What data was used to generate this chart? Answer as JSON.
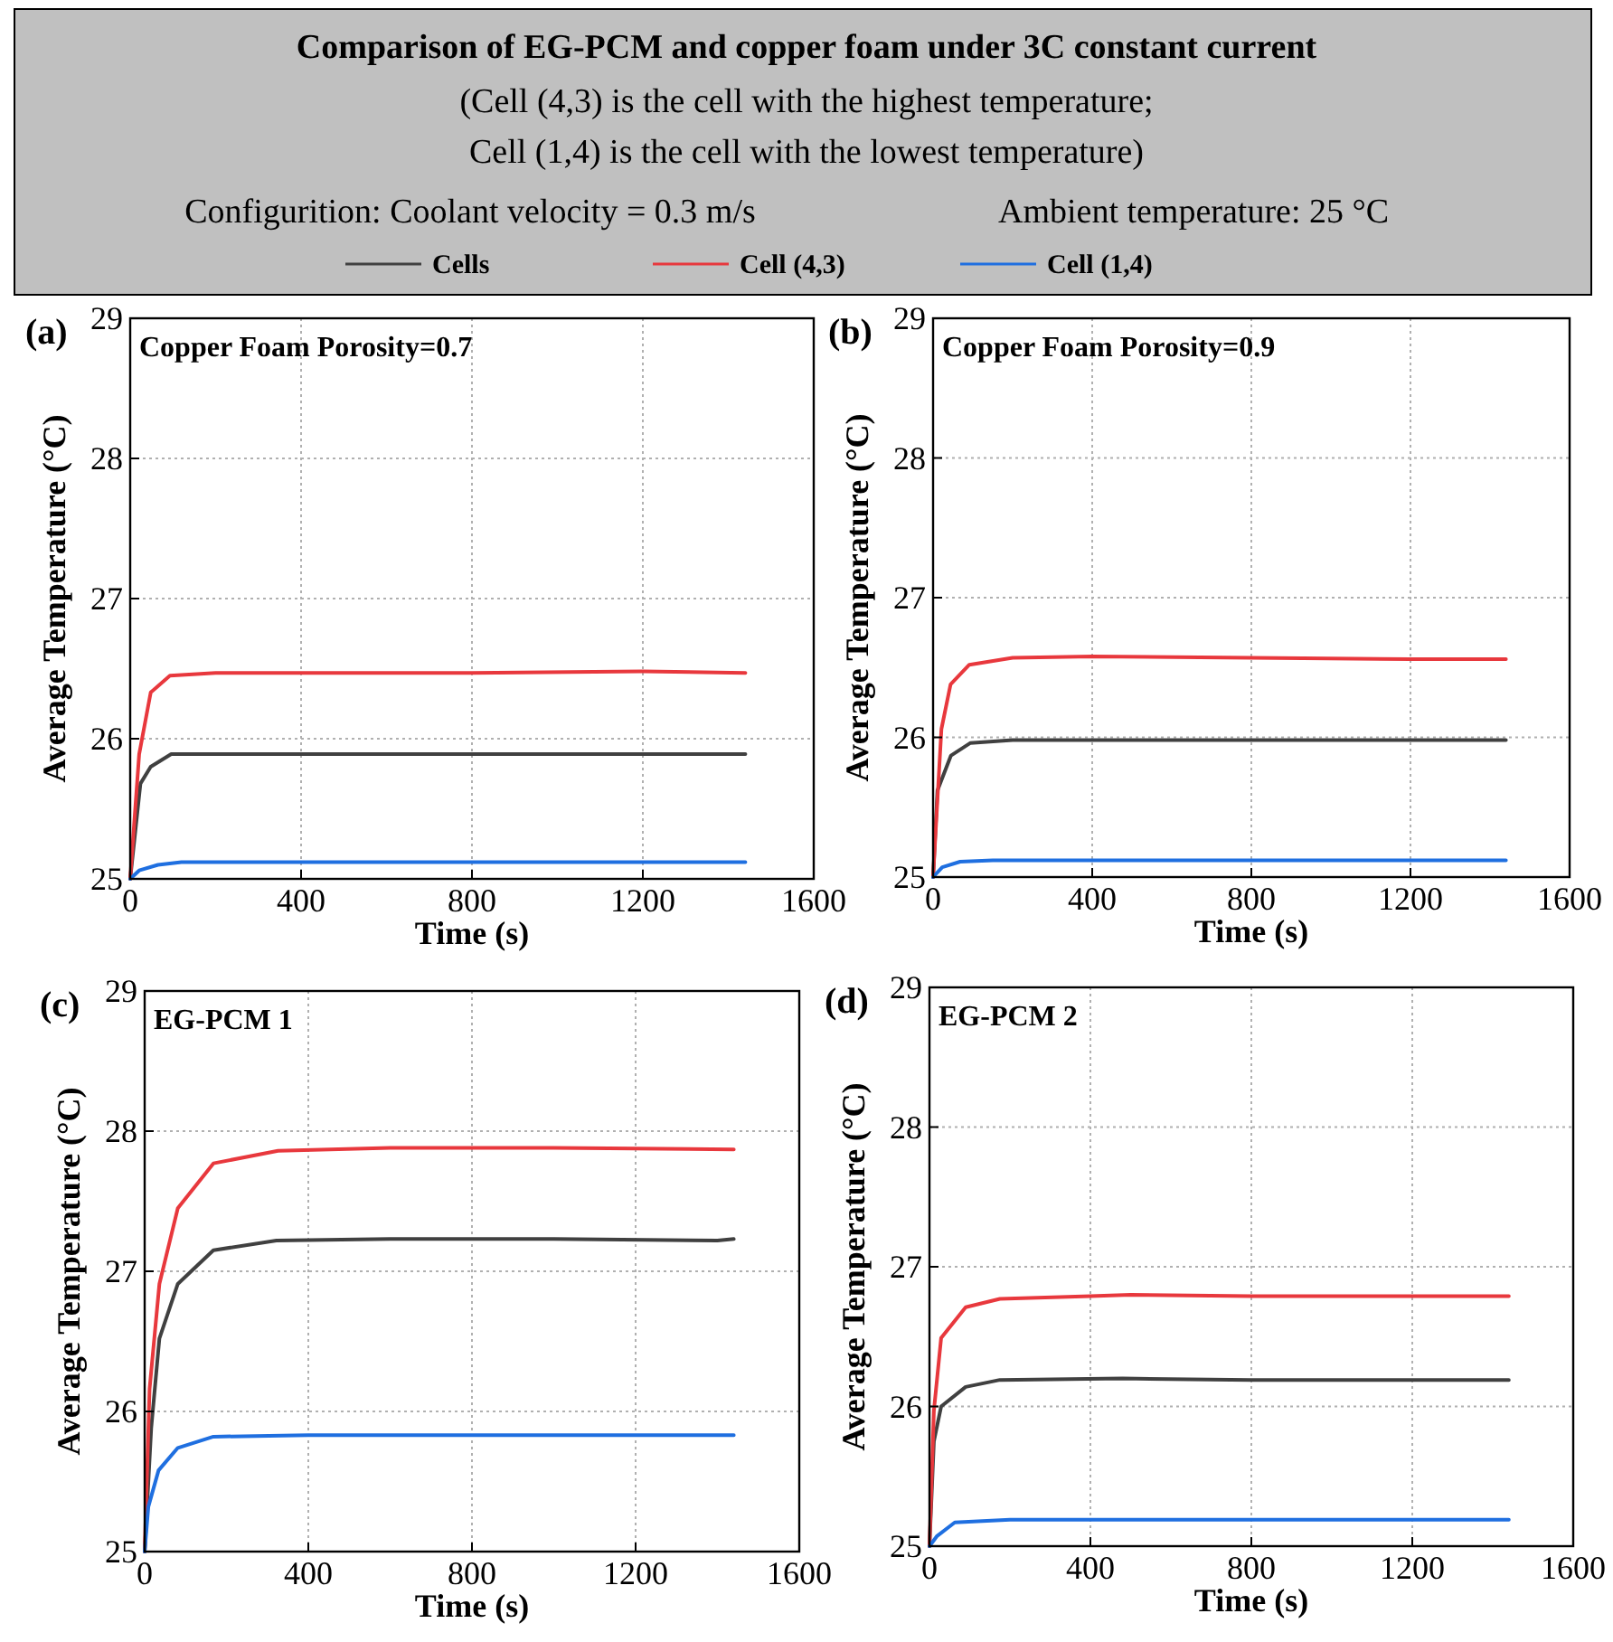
{
  "chart_data": [
    {
      "type": "other",
      "title": "Comparison of EG-PCM and copper foam under 3C constant current",
      "subtitle": "(Cell (4,3) is the cell with the highest temperature;\nCell (1,4) is the cell with the lowest temperature)",
      "annotations": [
        "Configurition: Coolant velocity = 0.3 m/s",
        "Ambient temperature: 25 °C"
      ]
    },
    {
      "type": "line",
      "title": "(a)",
      "annotations": [
        "Copper Foam Porosity=0.7"
      ],
      "xlabel": "Time (s)",
      "ylabel": "Average Temperature (°C)",
      "xlim": [
        0,
        1600
      ],
      "xticks": [
        0,
        400,
        800,
        1200,
        1600
      ],
      "ylim": [
        25,
        29
      ],
      "yticks": [
        25,
        26,
        27,
        28,
        29
      ],
      "grid": true,
      "legend": "top",
      "series": [
        {
          "name": "Cells",
          "color": "#404040",
          "x": [
            0,
            24,
            48,
            96,
            200,
            400,
            800,
            1200,
            1440
          ],
          "values": [
            25,
            25.68,
            25.8,
            25.89,
            25.89,
            25.89,
            25.89,
            25.89,
            25.89
          ]
        },
        {
          "name": "Cell (4,3)",
          "color": "#e8383d",
          "x": [
            0,
            21,
            48,
            93,
            200,
            400,
            800,
            1200,
            1440
          ],
          "values": [
            25,
            25.89,
            26.33,
            26.45,
            26.47,
            26.47,
            26.47,
            26.48,
            26.47
          ]
        },
        {
          "name": "Cell (1,4)",
          "color": "#1f6fe0",
          "x": [
            0,
            21,
            65,
            120,
            400,
            800,
            1200,
            1440
          ],
          "values": [
            25,
            25.06,
            25.1,
            25.12,
            25.12,
            25.12,
            25.12,
            25.12
          ]
        }
      ]
    },
    {
      "type": "line",
      "title": "(b)",
      "annotations": [
        "Copper Foam Porosity=0.9"
      ],
      "xlabel": "Time (s)",
      "ylabel": "Average Temperature (°C)",
      "xlim": [
        0,
        1600
      ],
      "xticks": [
        0,
        400,
        800,
        1200,
        1600
      ],
      "ylim": [
        25,
        29
      ],
      "yticks": [
        25,
        26,
        27,
        28,
        29
      ],
      "grid": true,
      "series": [
        {
          "color": "#404040",
          "x": [
            0,
            11,
            45,
            94,
            200,
            400,
            800,
            1200,
            1440
          ],
          "values": [
            25,
            25.62,
            25.87,
            25.96,
            25.98,
            25.98,
            25.98,
            25.98,
            25.98
          ]
        },
        {
          "color": "#e8383d",
          "x": [
            0,
            21,
            44,
            91,
            200,
            400,
            800,
            1200,
            1440
          ],
          "values": [
            25,
            26.06,
            26.38,
            26.52,
            26.57,
            26.58,
            26.57,
            26.56,
            26.56
          ]
        },
        {
          "color": "#1f6fe0",
          "x": [
            0,
            23,
            68,
            150,
            400,
            800,
            1200,
            1440
          ],
          "values": [
            25,
            25.07,
            25.11,
            25.12,
            25.12,
            25.12,
            25.12,
            25.12
          ]
        }
      ]
    },
    {
      "type": "line",
      "title": "(c)",
      "annotations": [
        "EG-PCM 1"
      ],
      "xlabel": "Time (s)",
      "ylabel": "Average Temperature (°C)",
      "xlim": [
        0,
        1600
      ],
      "xticks": [
        0,
        400,
        800,
        1200,
        1600
      ],
      "ylim": [
        25,
        29
      ],
      "yticks": [
        25,
        26,
        27,
        28,
        29
      ],
      "grid": true,
      "series": [
        {
          "color": "#404040",
          "x": [
            0,
            16,
            36,
            81,
            168,
            322,
            600,
            1000,
            1400,
            1440
          ],
          "values": [
            25,
            25.88,
            26.52,
            26.91,
            27.15,
            27.22,
            27.23,
            27.23,
            27.22,
            27.23
          ]
        },
        {
          "color": "#e8383d",
          "x": [
            0,
            12,
            36,
            81,
            168,
            326,
            600,
            1000,
            1440
          ],
          "values": [
            25,
            26.16,
            26.91,
            27.45,
            27.77,
            27.86,
            27.88,
            27.88,
            27.87
          ]
        },
        {
          "color": "#1f6fe0",
          "x": [
            0,
            9,
            34,
            81,
            168,
            400,
            800,
            1200,
            1440
          ],
          "values": [
            25,
            25.32,
            25.58,
            25.74,
            25.82,
            25.83,
            25.83,
            25.83,
            25.83
          ]
        }
      ]
    },
    {
      "type": "line",
      "title": "(d)",
      "annotations": [
        "EG-PCM 2"
      ],
      "xlabel": "Time (s)",
      "ylabel": "Average Temperature (°C)",
      "xlim": [
        0,
        1600
      ],
      "xticks": [
        0,
        400,
        800,
        1200,
        1600
      ],
      "ylim": [
        25,
        29
      ],
      "yticks": [
        25,
        26,
        27,
        28,
        29
      ],
      "grid": true,
      "series": [
        {
          "color": "#404040",
          "x": [
            0,
            11,
            29,
            90,
            175,
            480,
            800,
            1200,
            1440
          ],
          "values": [
            25,
            25.75,
            26,
            26.14,
            26.19,
            26.2,
            26.19,
            26.19,
            26.19
          ]
        },
        {
          "color": "#e8383d",
          "x": [
            0,
            11,
            29,
            90,
            175,
            400,
            500,
            800,
            1200,
            1440
          ],
          "values": [
            25,
            25.97,
            26.49,
            26.71,
            26.77,
            26.79,
            26.8,
            26.79,
            26.79,
            26.79
          ]
        },
        {
          "color": "#1f6fe0",
          "x": [
            0,
            18,
            63,
            200,
            800,
            1440
          ],
          "values": [
            25,
            25.07,
            25.17,
            25.19,
            25.19,
            25.19
          ]
        }
      ]
    }
  ]
}
